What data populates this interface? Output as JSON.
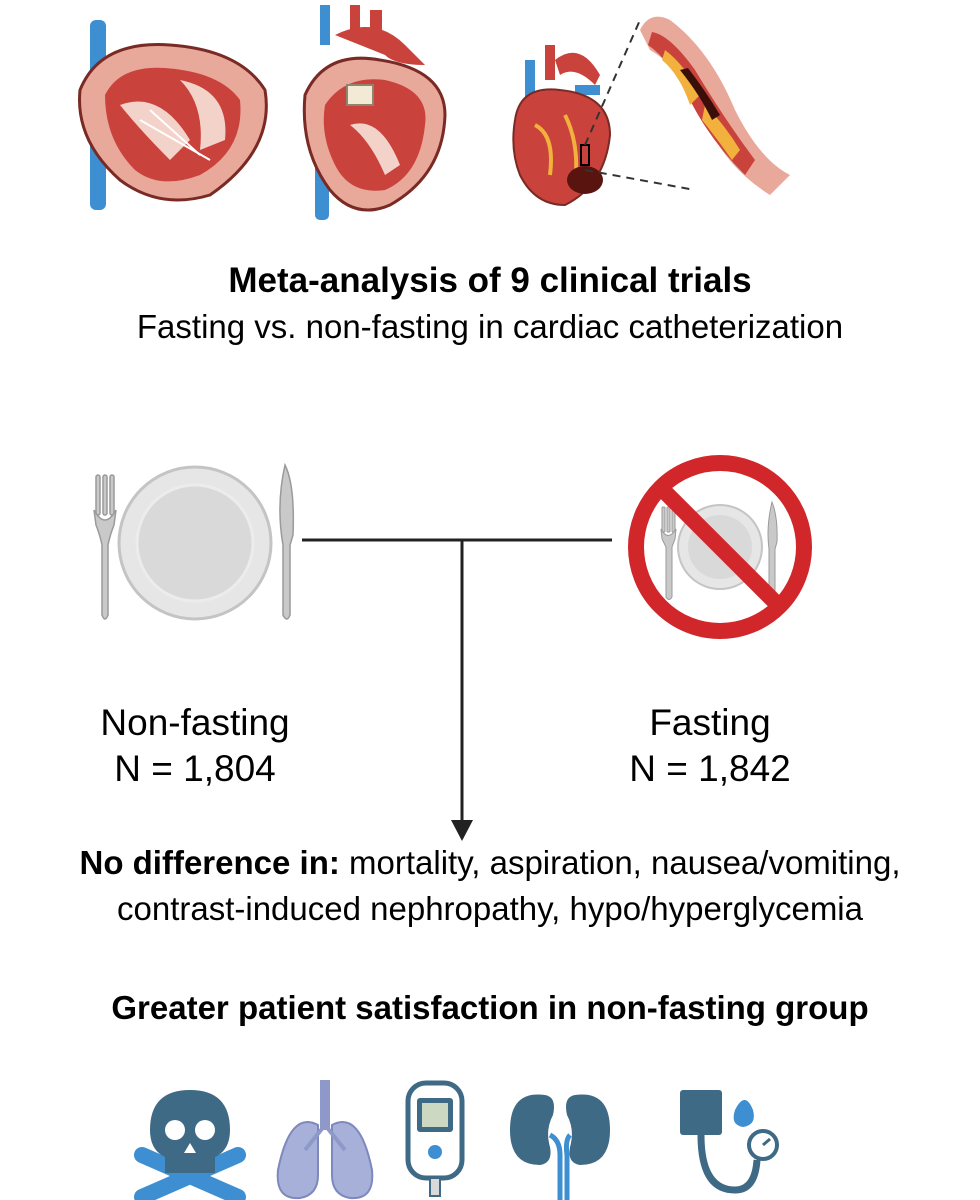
{
  "title": "Meta-analysis of 9 clinical trials",
  "subtitle": "Fasting vs. non-fasting in cardiac catheterization",
  "groups": {
    "non_fasting": {
      "name": "Non-fasting",
      "n": "N = 1,804"
    },
    "fasting": {
      "name": "Fasting",
      "n": "N = 1,842"
    }
  },
  "result": {
    "lead": "No difference in:",
    "line1_rest": " mortality, aspiration, nausea/vomiting,",
    "line2": "contrast-induced nephropathy, hypo/hyperglycemia"
  },
  "conclusion": "Greater patient satisfaction in non-fasting group",
  "icons": {
    "top": [
      "heart-cross-section-icon",
      "heart-valve-icon",
      "heart-artery-icon",
      "artery-plaque-icon"
    ],
    "plates": [
      "plate-fork-knife-icon",
      "no-eating-icon"
    ],
    "bottom": [
      "skull-crossbones-icon",
      "lungs-icon",
      "glucometer-icon",
      "kidneys-icon",
      "blood-pressure-monitor-icon"
    ]
  },
  "colors": {
    "heart_red": "#c9433c",
    "heart_pink": "#e8a89a",
    "vein_blue": "#3d8fd1",
    "prohibit_red": "#d1262a",
    "icon_slate": "#3e6a85",
    "lung_purple": "#a7b0d8"
  }
}
